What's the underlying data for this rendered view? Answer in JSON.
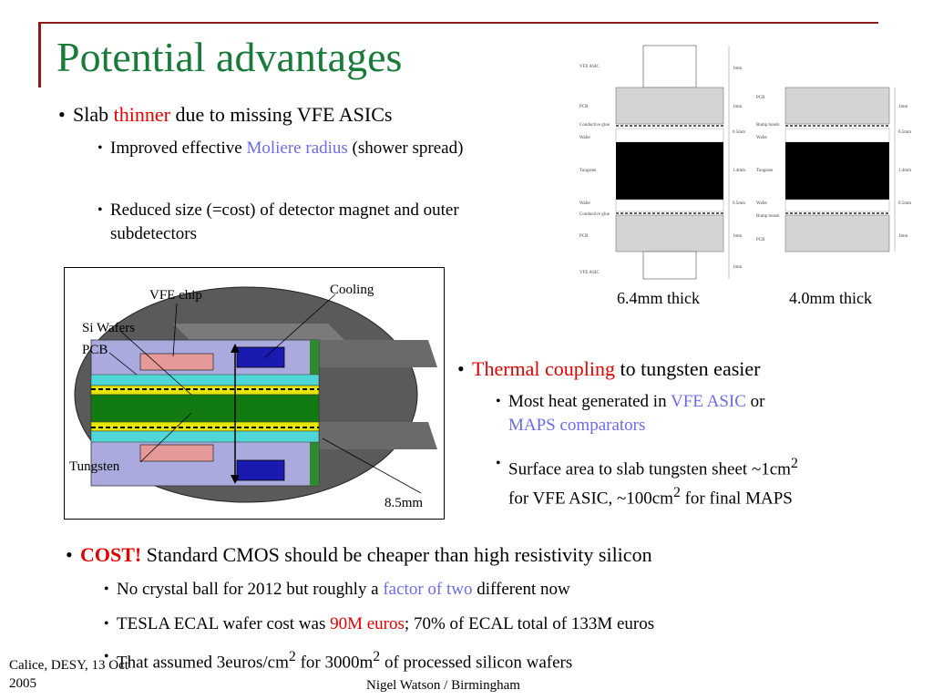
{
  "title": "Potential advantages",
  "bullets": {
    "slab": {
      "pre": "Slab ",
      "highlight": "thinner",
      "post": " due to missing VFE ASICs"
    },
    "moliere": {
      "pre": "Improved effective ",
      "highlight": "Moliere radius",
      "post": " (shower spread)"
    },
    "reduced": "Reduced size (=cost) of detector magnet and outer subdetectors",
    "thermal": {
      "highlight": "Thermal coupling",
      "post": " to tungsten easier"
    },
    "heat": {
      "pre": "Most heat generated in ",
      "hl1": "VFE ASIC",
      "mid": " or ",
      "hl2": "MAPS comparators"
    },
    "surface": {
      "pre": "Surface area to slab tungsten sheet ~1cm",
      "sup": "2",
      "mid": " for VFE ASIC, ~100cm",
      "sup2": "2",
      "post": " for final MAPS"
    },
    "cost": {
      "highlight": "COST!",
      "post": " Standard CMOS should be cheaper than high resistivity silicon"
    },
    "crystal": {
      "pre": "No crystal ball for 2012 but roughly a ",
      "highlight": "factor of two",
      "post": " different now"
    },
    "tesla": {
      "pre": "TESLA ECAL wafer cost was ",
      "highlight": "90M euros",
      "post": "; 70% of ECAL total of 133M euros"
    },
    "assumed": {
      "pre": "That assumed 3euros/cm",
      "sup": "2",
      "mid": " for 3000m",
      "sup2": "2",
      "post": " of processed silicon wafers"
    }
  },
  "diagram_left": {
    "labels": {
      "vfe": "VFE chip",
      "cooling": "Cooling",
      "si": "Si Wafers",
      "pcb": "PCB",
      "tungsten": "Tungsten",
      "size": "8.5mm"
    }
  },
  "diagram_right": {
    "captions": {
      "left": "6.4mm thick",
      "right": "4.0mm thick"
    },
    "labels_a": [
      "VFE ASIC",
      "PCB",
      "Conductive glue",
      "Wafer",
      "Tungsten",
      "Wafer",
      "Conductive glue",
      "PCB",
      "VFE ASIC"
    ],
    "labels_b": [
      "PCB",
      "Bump bonds",
      "Wafer",
      "Tungsten",
      "Wafer",
      "Bump bonds",
      "PCB"
    ],
    "dims": [
      "1mm",
      "1mm",
      "0.5mm",
      "1.4mm",
      "0.5mm",
      "1mm",
      "1mm"
    ]
  },
  "footer": {
    "left_line1": "Calice, DESY, 13 Oct",
    "left_line2": "2005",
    "center": "Nigel Watson / Birmingham"
  },
  "colors": {
    "title": "#1a7a3a",
    "accent_red": "#e00000",
    "accent_blue": "#6b6be8",
    "rule": "#8b1a1a"
  }
}
